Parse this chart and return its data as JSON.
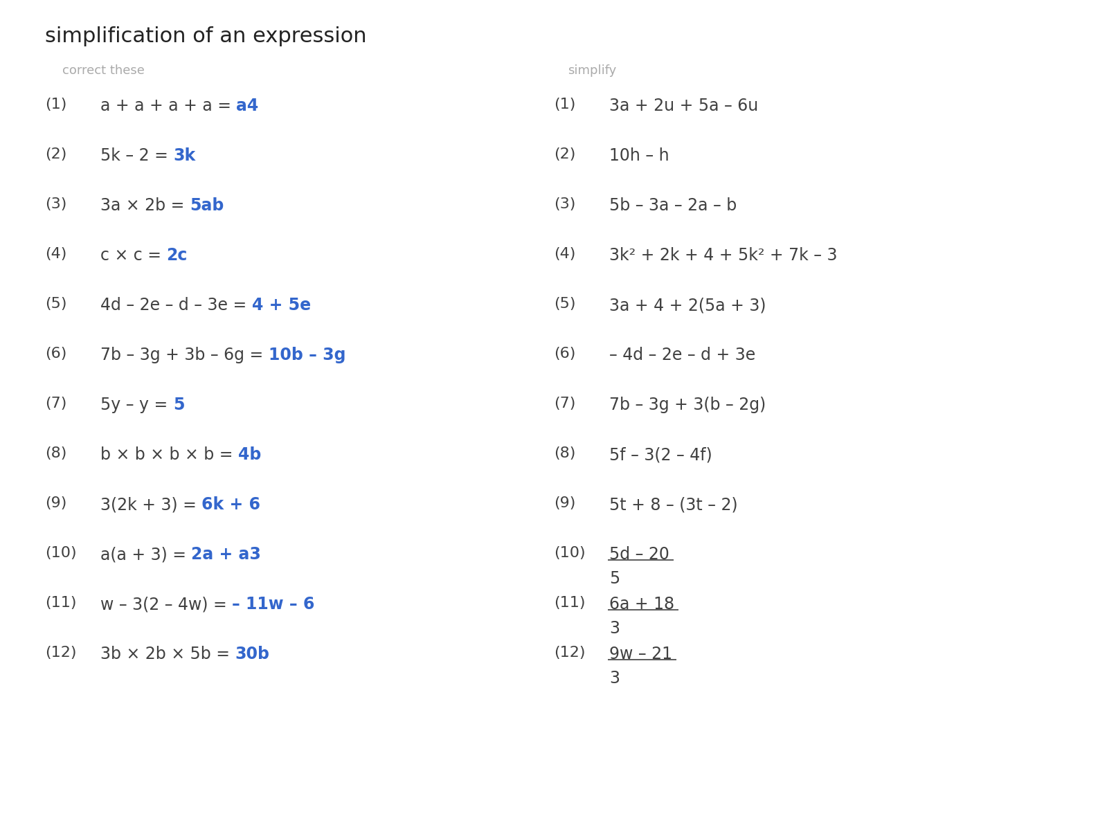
{
  "title": "simplification of an expression",
  "title_fontsize": 22,
  "background_color": "#ffffff",
  "text_color": "#404040",
  "answer_color": "#808080",
  "header_color": "#aaaaaa",
  "left_header": "correct these",
  "right_header": "simplify",
  "left_items": [
    {
      "num": "(1)",
      "expr": "a + a + a + a = ",
      "answer": "a4"
    },
    {
      "num": "(2)",
      "expr": "5k – 2 = ",
      "answer": "3k"
    },
    {
      "num": "(3)",
      "expr": "3a × 2b = ",
      "answer": "5ab"
    },
    {
      "num": "(4)",
      "expr": "c × c = ",
      "answer": "2c"
    },
    {
      "num": "(5)",
      "expr": "4d – 2e – d – 3e = ",
      "answer": "4 + 5e"
    },
    {
      "num": "(6)",
      "expr": "7b – 3g + 3b – 6g = ",
      "answer": "10b – 3g"
    },
    {
      "num": "(7)",
      "expr": "5y – y = ",
      "answer": "5"
    },
    {
      "num": "(8)",
      "expr": "b × b × b × b = ",
      "answer": "4b"
    },
    {
      "num": "(9)",
      "expr": "3(2k + 3) = ",
      "answer": "6k + 6"
    },
    {
      "num": "(10)",
      "expr": "a(a + 3) = ",
      "answer": "2a + a3"
    },
    {
      "num": "(11)",
      "expr": "w – 3(2 – 4w) = ",
      "answer": "– 11w – 6"
    },
    {
      "num": "(12)",
      "expr": "3b × 2b × 5b = ",
      "answer": "30b"
    }
  ],
  "right_items": [
    {
      "num": "(1)",
      "expr": "3a + 2u + 5a – 6u",
      "fraction": false
    },
    {
      "num": "(2)",
      "expr": "10h – h",
      "fraction": false
    },
    {
      "num": "(3)",
      "expr": "5b – 3a – 2a – b",
      "fraction": false
    },
    {
      "num": "(4)",
      "expr": "3k² + 2k + 4 + 5k² + 7k – 3",
      "fraction": false
    },
    {
      "num": "(5)",
      "expr": "3a + 4 + 2(5a + 3)",
      "fraction": false
    },
    {
      "num": "(6)",
      "expr": "– 4d – 2e – d + 3e",
      "fraction": false
    },
    {
      "num": "(7)",
      "expr": "7b – 3g + 3(b – 2g)",
      "fraction": false
    },
    {
      "num": "(8)",
      "expr": "5f – 3(2 – 4f)",
      "fraction": false
    },
    {
      "num": "(9)",
      "expr": "5t + 8 – (3t – 2)",
      "fraction": false
    },
    {
      "num": "(10)",
      "numerator": "5d – 20",
      "denominator": "5",
      "fraction": true
    },
    {
      "num": "(11)",
      "numerator": "6a + 18",
      "denominator": "3",
      "fraction": true
    },
    {
      "num": "(12)",
      "numerator": "9w – 21",
      "denominator": "3",
      "fraction": true
    }
  ]
}
